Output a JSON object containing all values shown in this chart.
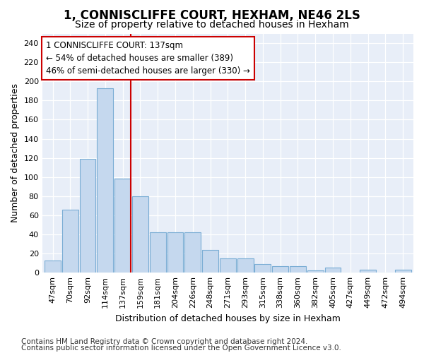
{
  "title": "1, CONNISCLIFFE COURT, HEXHAM, NE46 2LS",
  "subtitle": "Size of property relative to detached houses in Hexham",
  "xlabel": "Distribution of detached houses by size in Hexham",
  "ylabel": "Number of detached properties",
  "categories": [
    "47sqm",
    "70sqm",
    "92sqm",
    "114sqm",
    "137sqm",
    "159sqm",
    "181sqm",
    "204sqm",
    "226sqm",
    "248sqm",
    "271sqm",
    "293sqm",
    "315sqm",
    "338sqm",
    "360sqm",
    "382sqm",
    "405sqm",
    "427sqm",
    "449sqm",
    "472sqm",
    "494sqm"
  ],
  "values": [
    13,
    66,
    119,
    193,
    98,
    80,
    42,
    42,
    42,
    24,
    15,
    15,
    9,
    7,
    7,
    2,
    5,
    0,
    3,
    0,
    3
  ],
  "bar_color": "#c5d8ee",
  "bar_edge_color": "#7aadd4",
  "highlight_bar_index": 4,
  "highlight_line_color": "#cc0000",
  "annotation_text": "1 CONNISCLIFFE COURT: 137sqm\n← 54% of detached houses are smaller (389)\n46% of semi-detached houses are larger (330) →",
  "annotation_box_color": "#ffffff",
  "annotation_box_edge": "#cc0000",
  "ylim": [
    0,
    250
  ],
  "yticks": [
    0,
    20,
    40,
    60,
    80,
    100,
    120,
    140,
    160,
    180,
    200,
    220,
    240
  ],
  "footer_line1": "Contains HM Land Registry data © Crown copyright and database right 2024.",
  "footer_line2": "Contains public sector information licensed under the Open Government Licence v3.0.",
  "bg_color": "#ffffff",
  "plot_bg_color": "#e8eef8",
  "title_fontsize": 12,
  "subtitle_fontsize": 10,
  "axis_label_fontsize": 9,
  "tick_fontsize": 8,
  "footer_fontsize": 7.5,
  "annotation_fontsize": 8.5
}
